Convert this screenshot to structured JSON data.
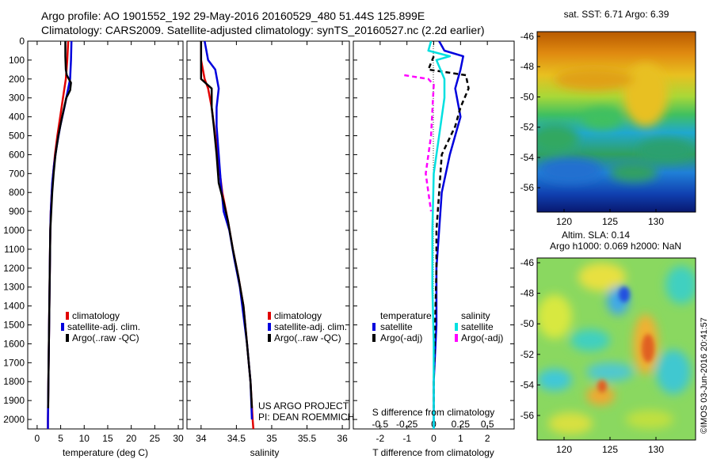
{
  "header": {
    "line1": "Argo profile: AO 1901552_192 29-May-2016 20160529_480 51.44S 125.899E",
    "line2": "Climatology: CARS2009. Satellite-adjusted climatology: synTS_20160527.nc (2.2d earlier)"
  },
  "colors": {
    "clim": "#e00000",
    "sat": "#0000dd",
    "argo": "#000000",
    "sal_sat": "#00e0e0",
    "sal_argo": "#ff00ff"
  },
  "depth_ticks": [
    0,
    100,
    200,
    300,
    400,
    500,
    600,
    700,
    800,
    900,
    1000,
    1100,
    1200,
    1300,
    1400,
    1500,
    1600,
    1700,
    1800,
    1900,
    2000
  ],
  "chart_data": [
    {
      "type": "line",
      "xlabel": "temperature (deg C)",
      "xlim": [
        -2,
        31
      ],
      "ylim": [
        2050,
        0
      ],
      "xticks": [
        "0",
        "5",
        "10",
        "15",
        "20",
        "25",
        "30"
      ],
      "legend": [
        "climatology",
        "satellite-adj. clim.",
        "Argo(..raw -QC)"
      ],
      "legend_placement": "lower-left",
      "series": [
        {
          "name": "climatology",
          "color": "#e00000",
          "points": [
            [
              6.6,
              0
            ],
            [
              6.4,
              100
            ],
            [
              6.1,
              200
            ],
            [
              5.5,
              300
            ],
            [
              4.9,
              400
            ],
            [
              4.3,
              500
            ],
            [
              3.8,
              600
            ],
            [
              3.4,
              700
            ],
            [
              3.1,
              800
            ],
            [
              2.9,
              900
            ],
            [
              2.8,
              1000
            ],
            [
              2.7,
              1200
            ],
            [
              2.6,
              1400
            ],
            [
              2.5,
              1600
            ],
            [
              2.4,
              1800
            ],
            [
              2.3,
              2000
            ],
            [
              2.3,
              2050
            ]
          ]
        },
        {
          "name": "satellite-adj. clim.",
          "color": "#0000dd",
          "points": [
            [
              7.3,
              0
            ],
            [
              7.2,
              100
            ],
            [
              7.0,
              200
            ],
            [
              6.6,
              250
            ],
            [
              5.8,
              350
            ],
            [
              4.9,
              450
            ],
            [
              4.2,
              550
            ],
            [
              3.6,
              650
            ],
            [
              3.2,
              750
            ],
            [
              2.9,
              900
            ],
            [
              2.8,
              1000
            ],
            [
              2.7,
              1200
            ],
            [
              2.6,
              1400
            ],
            [
              2.5,
              1600
            ],
            [
              2.4,
              1800
            ],
            [
              2.3,
              2000
            ],
            [
              2.3,
              2050
            ]
          ]
        },
        {
          "name": "Argo(..raw -QC)",
          "color": "#000000",
          "points": [
            [
              6.0,
              0
            ],
            [
              6.0,
              80
            ],
            [
              6.1,
              150
            ],
            [
              6.3,
              180
            ],
            [
              7.2,
              220
            ],
            [
              7.0,
              260
            ],
            [
              6.2,
              300
            ],
            [
              5.3,
              400
            ],
            [
              4.5,
              500
            ],
            [
              3.9,
              600
            ],
            [
              3.5,
              700
            ],
            [
              3.2,
              800
            ],
            [
              3.0,
              900
            ],
            [
              2.8,
              1000
            ],
            [
              2.7,
              1200
            ],
            [
              2.6,
              1400
            ],
            [
              2.5,
              1600
            ],
            [
              2.4,
              1800
            ],
            [
              2.35,
              1940
            ]
          ]
        }
      ]
    },
    {
      "type": "line",
      "xlabel": "salinity",
      "xlim": [
        33.8,
        36.1
      ],
      "ylim": [
        2050,
        0
      ],
      "xticks": [
        "34",
        "34.5",
        "35",
        "35.5",
        "36"
      ],
      "legend": [
        "climatology",
        "satellite-adj. clim.",
        "Argo(..raw -QC)"
      ],
      "legend_placement": "lower-right",
      "annotation": [
        "US ARGO PROJECT",
        "PI: DEAN ROEMMICH"
      ],
      "series": [
        {
          "name": "climatology",
          "color": "#e00000",
          "points": [
            [
              34.0,
              0
            ],
            [
              34.0,
              100
            ],
            [
              34.05,
              200
            ],
            [
              34.1,
              250
            ],
            [
              34.15,
              350
            ],
            [
              34.2,
              500
            ],
            [
              34.25,
              650
            ],
            [
              34.3,
              800
            ],
            [
              34.38,
              950
            ],
            [
              34.45,
              1100
            ],
            [
              34.53,
              1250
            ],
            [
              34.6,
              1400
            ],
            [
              34.65,
              1600
            ],
            [
              34.7,
              1800
            ],
            [
              34.73,
              2000
            ],
            [
              34.74,
              2050
            ]
          ]
        },
        {
          "name": "satellite-adj. clim.",
          "color": "#0000dd",
          "points": [
            [
              34.05,
              0
            ],
            [
              34.1,
              100
            ],
            [
              34.2,
              150
            ],
            [
              34.25,
              250
            ],
            [
              34.22,
              350
            ],
            [
              34.22,
              450
            ],
            [
              34.25,
              600
            ],
            [
              34.28,
              750
            ],
            [
              34.32,
              900
            ],
            [
              34.4,
              1000
            ],
            [
              34.47,
              1150
            ],
            [
              34.55,
              1300
            ],
            [
              34.6,
              1450
            ],
            [
              34.65,
              1600
            ],
            [
              34.7,
              1800
            ],
            [
              34.72,
              2000
            ]
          ]
        },
        {
          "name": "Argo(..raw -QC)",
          "color": "#000000",
          "points": [
            [
              34.0,
              0
            ],
            [
              34.0,
              120
            ],
            [
              34.0,
              200
            ],
            [
              34.15,
              250
            ],
            [
              34.15,
              350
            ],
            [
              34.18,
              450
            ],
            [
              34.22,
              600
            ],
            [
              34.25,
              750
            ],
            [
              34.32,
              850
            ],
            [
              34.38,
              950
            ],
            [
              34.45,
              1100
            ],
            [
              34.53,
              1250
            ],
            [
              34.6,
              1400
            ],
            [
              34.65,
              1600
            ],
            [
              34.7,
              1800
            ],
            [
              34.72,
              1940
            ]
          ]
        }
      ]
    },
    {
      "type": "line",
      "xlabel": "T difference from climatology",
      "xlim": [
        -3,
        3
      ],
      "ylim": [
        2050,
        0
      ],
      "xticks": [
        "-2",
        "-1",
        "0",
        "1",
        "2"
      ],
      "secondary_xlabel": "S difference from climatology",
      "secondary_xticks": [
        "-0.5",
        "-0.25",
        "0",
        "0.25",
        "0.5"
      ],
      "legend_headers": [
        "temperature",
        "salinity"
      ],
      "legend": [
        "satellite",
        "Argo(-adj)",
        "satellite",
        "Argo(-adj)"
      ],
      "legend_placement": "lower",
      "series": [
        {
          "name": "satellite",
          "color": "#0000dd",
          "points": [
            [
              0.2,
              0
            ],
            [
              0.4,
              50
            ],
            [
              1.1,
              80
            ],
            [
              1.0,
              150
            ],
            [
              0.8,
              250
            ],
            [
              1.0,
              400
            ],
            [
              0.6,
              600
            ],
            [
              0.3,
              800
            ],
            [
              0.2,
              1000
            ],
            [
              0.1,
              1200
            ],
            [
              0.1,
              1500
            ],
            [
              0.0,
              1800
            ],
            [
              0.0,
              2050
            ]
          ]
        },
        {
          "name": "Argo(-adj)",
          "color": "#000000",
          "dashed": true,
          "points": [
            [
              0.0,
              80
            ],
            [
              -0.2,
              150
            ],
            [
              1.2,
              180
            ],
            [
              1.3,
              250
            ],
            [
              1.0,
              350
            ],
            [
              0.8,
              450
            ],
            [
              0.3,
              600
            ],
            [
              0.2,
              800
            ],
            [
              0.1,
              1000
            ],
            [
              0.1,
              1200
            ],
            [
              0.05,
              1500
            ],
            [
              0.0,
              1800
            ],
            [
              0.0,
              1940
            ]
          ]
        },
        {
          "name": "satellite",
          "color": "#00e0e0",
          "points": [
            [
              -0.1,
              0
            ],
            [
              -0.2,
              50
            ],
            [
              0.6,
              80
            ],
            [
              0.1,
              100
            ],
            [
              0.4,
              200
            ],
            [
              0.4,
              300
            ],
            [
              0.2,
              500
            ],
            [
              0.0,
              700
            ],
            [
              -0.05,
              1000
            ],
            [
              -0.05,
              1300
            ],
            [
              0.0,
              1600
            ],
            [
              0.0,
              2050
            ]
          ]
        },
        {
          "name": "Argo(-adj)",
          "color": "#ff00ff",
          "dashed": true,
          "points": [
            [
              -1.1,
              180
            ],
            [
              -0.2,
              200
            ],
            [
              0.0,
              230
            ],
            [
              -0.1,
              500
            ],
            [
              -0.3,
              700
            ],
            [
              -0.1,
              900
            ]
          ]
        }
      ]
    }
  ],
  "maps": {
    "sst": {
      "title": "sat. SST: 6.71  Argo: 6.39",
      "xticks": [
        "120",
        "125",
        "130"
      ],
      "yticks": [
        "-46",
        "-48",
        "-50",
        "-52",
        "-54",
        "-56"
      ]
    },
    "sla": {
      "title1": "Altim. SLA: 0.14",
      "title2": "Argo h1000: 0.069 h2000: NaN",
      "xticks": [
        "120",
        "125",
        "130"
      ],
      "yticks": [
        "-46",
        "-48",
        "-50",
        "-52",
        "-54",
        "-56"
      ]
    }
  },
  "stamp": "©IMOS 03-Jun-2016 20:41:57"
}
